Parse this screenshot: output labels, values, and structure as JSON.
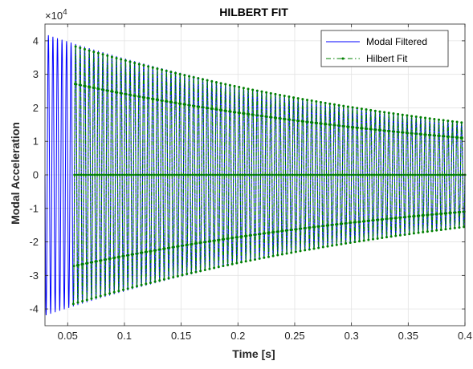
{
  "chart_data": {
    "type": "line",
    "title": "HILBERT FIT",
    "xlabel": "Time [s]",
    "ylabel": "Modal Acceleration",
    "y_exponent_label": "×10",
    "y_exponent_power": "4",
    "xlim": [
      0.03,
      0.4
    ],
    "ylim": [
      -45000,
      45000
    ],
    "x_ticks": [
      0.05,
      0.1,
      0.15,
      0.2,
      0.25,
      0.3,
      0.35,
      0.4
    ],
    "x_tick_labels": [
      "0.05",
      "0.1",
      "0.15",
      "0.2",
      "0.25",
      "0.3",
      "0.35",
      "0.4"
    ],
    "y_ticks": [
      -40000,
      -30000,
      -20000,
      -10000,
      0,
      10000,
      20000,
      30000,
      40000
    ],
    "y_tick_labels": [
      "-4",
      "-3",
      "-2",
      "-1",
      "0",
      "1",
      "2",
      "3",
      "4"
    ],
    "grid": true,
    "legend_position": "top-right",
    "series": [
      {
        "name": "Modal Filtered",
        "color": "#0000ff",
        "style": "solid",
        "x_range": [
          0.03,
          0.4
        ],
        "frequency_hz": 250,
        "amplitude_at_start": 42000,
        "amplitude_at_end": 15500
      },
      {
        "name": "Hilbert Fit",
        "color": "#008000",
        "style": "dash-dot with point markers",
        "x_range": [
          0.055,
          0.4
        ],
        "frequency_hz": 250,
        "amplitude_at_start": 38500,
        "amplitude_at_end": 15500
      }
    ]
  }
}
